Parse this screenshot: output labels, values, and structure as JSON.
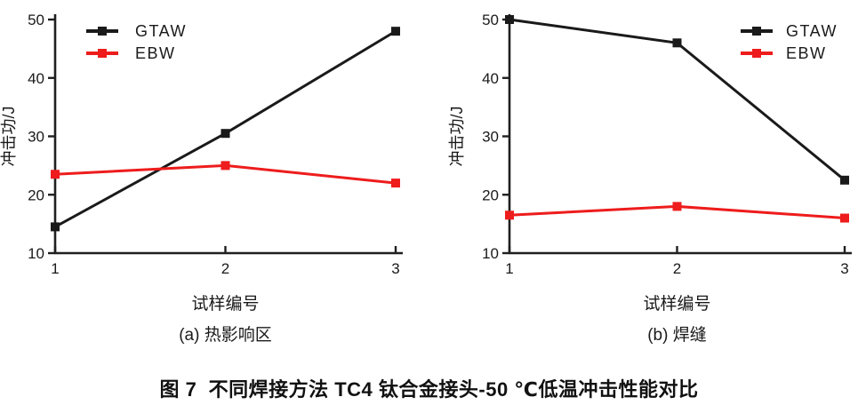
{
  "figure_caption": "图 7  不同焊接方法 TC4 钛合金接头-50 ℃低温冲击性能对比",
  "colors": {
    "gtaw": "#1a1a1a",
    "ebw": "#ee1c1c",
    "axis": "#1f1f1f",
    "background": "#ffffff"
  },
  "chart_data": [
    {
      "type": "line",
      "panel": "a",
      "subtitle": "(a) 热影响区",
      "xlabel": "试样编号",
      "ylabel": "冲击功/J",
      "x": [
        1,
        2,
        3
      ],
      "xlim": [
        1,
        3
      ],
      "ylim": [
        10,
        50
      ],
      "xticks": [
        1,
        2,
        3
      ],
      "yticks": [
        10,
        20,
        30,
        40,
        50
      ],
      "grid": false,
      "legend_position": "top-left",
      "series": [
        {
          "name": "GTAW",
          "color": "#1a1a1a",
          "marker": "square",
          "values": [
            14.5,
            30.5,
            48
          ]
        },
        {
          "name": "EBW",
          "color": "#ee1c1c",
          "marker": "square",
          "values": [
            23.5,
            25,
            22
          ]
        }
      ]
    },
    {
      "type": "line",
      "panel": "b",
      "subtitle": "(b) 焊缝",
      "xlabel": "试样编号",
      "ylabel": "冲击功/J",
      "x": [
        1,
        2,
        3
      ],
      "xlim": [
        1,
        3
      ],
      "ylim": [
        10,
        50
      ],
      "xticks": [
        1,
        2,
        3
      ],
      "yticks": [
        10,
        20,
        30,
        40,
        50
      ],
      "grid": false,
      "legend_position": "top-right",
      "series": [
        {
          "name": "GTAW",
          "color": "#1a1a1a",
          "marker": "square",
          "values": [
            50,
            46,
            22.5
          ]
        },
        {
          "name": "EBW",
          "color": "#ee1c1c",
          "marker": "square",
          "values": [
            16.5,
            18,
            16
          ]
        }
      ]
    }
  ]
}
